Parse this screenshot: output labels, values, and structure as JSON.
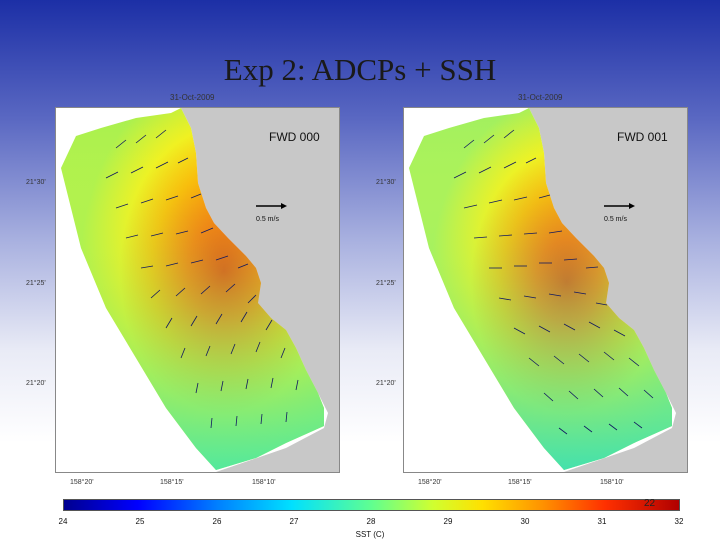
{
  "slide": {
    "title": "Exp 2: ADCPs + SSH",
    "page_number": "22"
  },
  "panels": [
    {
      "date": "31-Oct-2009",
      "label": "FWD 000",
      "scale": "0.5 m/s"
    },
    {
      "date": "31-Oct-2009",
      "label": "FWD 001",
      "scale": "0.5 m/s"
    }
  ],
  "axes": {
    "lat_ticks": [
      "21°30'",
      "21°25'",
      "21°20'"
    ],
    "lon_ticks": [
      "158°20'",
      "158°15'",
      "158°10'"
    ]
  },
  "colorbar": {
    "label": "SST (C)",
    "ticks": [
      "24",
      "25",
      "26",
      "27",
      "28",
      "29",
      "30",
      "31",
      "32"
    ],
    "colors": [
      "#00008f",
      "#0000ff",
      "#0080ff",
      "#00e0ff",
      "#60ff90",
      "#d0ff30",
      "#ffe000",
      "#ff9000",
      "#ff3000",
      "#b00000"
    ]
  },
  "map": {
    "land_color": "#c8c8c8",
    "arrow_color": "#101860"
  }
}
